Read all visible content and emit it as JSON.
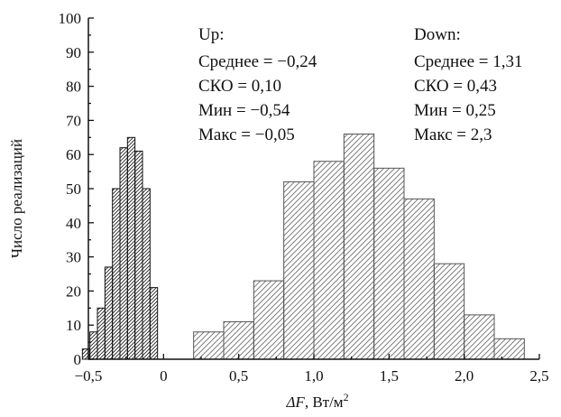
{
  "chart_data": {
    "type": "bar",
    "xlabel_prefix": "ΔF",
    "xlabel_suffix": ",  Вт/м",
    "xlabel_sup": "2",
    "ylabel": "Число реализаций",
    "xlim": [
      -0.5,
      2.5
    ],
    "ylim": [
      0,
      100
    ],
    "grid": false,
    "xticks": [
      {
        "value": -0.5,
        "label": "−0,5"
      },
      {
        "value": 0,
        "label": "0"
      },
      {
        "value": 0.5,
        "label": "0,5"
      },
      {
        "value": 1.0,
        "label": "1,0"
      },
      {
        "value": 1.5,
        "label": "1,5"
      },
      {
        "value": 2.0,
        "label": "2,0"
      },
      {
        "value": 2.5,
        "label": "2,5"
      }
    ],
    "yticks": [
      {
        "value": 0,
        "label": "0"
      },
      {
        "value": 10,
        "label": "10"
      },
      {
        "value": 20,
        "label": "20"
      },
      {
        "value": 30,
        "label": "30"
      },
      {
        "value": 40,
        "label": "40"
      },
      {
        "value": 50,
        "label": "50"
      },
      {
        "value": 60,
        "label": "60"
      },
      {
        "value": 70,
        "label": "70"
      },
      {
        "value": 80,
        "label": "80"
      },
      {
        "value": 90,
        "label": "90"
      },
      {
        "value": 100,
        "label": "100"
      }
    ],
    "series": [
      {
        "name": "Up",
        "hatch": "double",
        "bins": [
          {
            "x0": -0.54,
            "x1": -0.49,
            "y": 3
          },
          {
            "x0": -0.49,
            "x1": -0.44,
            "y": 8
          },
          {
            "x0": -0.44,
            "x1": -0.39,
            "y": 15
          },
          {
            "x0": -0.39,
            "x1": -0.34,
            "y": 27
          },
          {
            "x0": -0.34,
            "x1": -0.29,
            "y": 50
          },
          {
            "x0": -0.29,
            "x1": -0.24,
            "y": 62
          },
          {
            "x0": -0.24,
            "x1": -0.19,
            "y": 65
          },
          {
            "x0": -0.19,
            "x1": -0.14,
            "y": 61
          },
          {
            "x0": -0.14,
            "x1": -0.09,
            "y": 50
          },
          {
            "x0": -0.09,
            "x1": -0.04,
            "y": 21
          }
        ],
        "stats": {
          "title": "Up:",
          "lines": [
            "Среднее = −0,24",
            "СКО = 0,10",
            "Мин = −0,54",
            "Макс = −0,05"
          ]
        }
      },
      {
        "name": "Down",
        "hatch": "single",
        "bins": [
          {
            "x0": 0.2,
            "x1": 0.4,
            "y": 8
          },
          {
            "x0": 0.4,
            "x1": 0.6,
            "y": 11
          },
          {
            "x0": 0.6,
            "x1": 0.8,
            "y": 23
          },
          {
            "x0": 0.8,
            "x1": 1.0,
            "y": 52
          },
          {
            "x0": 1.0,
            "x1": 1.2,
            "y": 58
          },
          {
            "x0": 1.2,
            "x1": 1.4,
            "y": 66
          },
          {
            "x0": 1.4,
            "x1": 1.6,
            "y": 56
          },
          {
            "x0": 1.6,
            "x1": 1.8,
            "y": 47
          },
          {
            "x0": 1.8,
            "x1": 2.0,
            "y": 28
          },
          {
            "x0": 2.0,
            "x1": 2.2,
            "y": 13
          },
          {
            "x0": 2.2,
            "x1": 2.4,
            "y": 6
          }
        ],
        "stats": {
          "title": "Down:",
          "lines": [
            "Среднее = 1,31",
            "СКО = 0,43",
            "Мин = 0,25",
            "Макс = 2,3"
          ]
        }
      }
    ]
  }
}
